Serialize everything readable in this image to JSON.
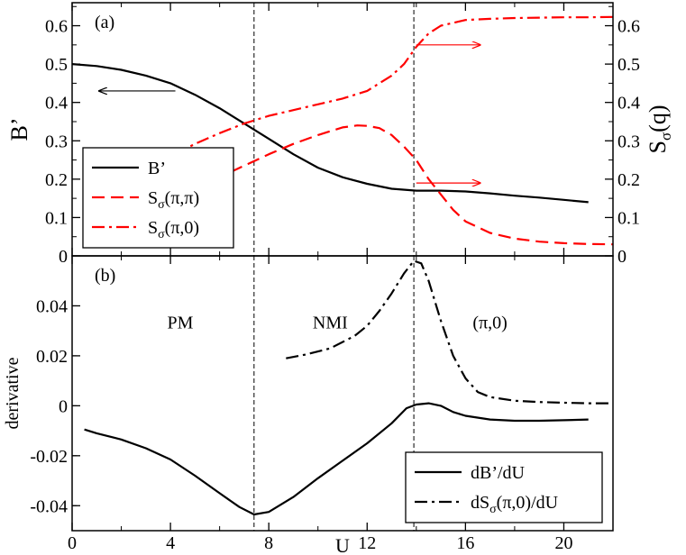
{
  "chart_data": [
    {
      "panel": "(a)",
      "type": "line",
      "xlabel": "",
      "ylabel": "B’",
      "y2label": "S",
      "y2label_sub": "σ",
      "y2label_rest": "(q)",
      "xlim": [
        0,
        22
      ],
      "ylim": [
        0,
        0.66
      ],
      "y2lim": [
        0,
        0.66
      ],
      "yticks": [
        0,
        0.1,
        0.2,
        0.3,
        0.4,
        0.5,
        0.6
      ],
      "ytick_labels": [
        "0",
        "0.1",
        "0.2",
        "0.3",
        "0.4",
        "0.5",
        "0.6"
      ],
      "y2tick_labels": [
        "0",
        "0.1",
        "0.2",
        "0.3",
        "0.4",
        "0.5",
        "0.6"
      ],
      "legend_position": "bottom-left",
      "vlines": [
        7.4,
        13.9
      ],
      "series": [
        {
          "name": "B’",
          "name_main": "B’",
          "name_sub": "",
          "name_rest": "",
          "axis": "left",
          "color": "#000000",
          "dash": "solid",
          "points": [
            [
              0,
              0.5
            ],
            [
              1,
              0.495
            ],
            [
              2,
              0.485
            ],
            [
              3,
              0.47
            ],
            [
              4,
              0.45
            ],
            [
              5,
              0.42
            ],
            [
              6,
              0.385
            ],
            [
              7,
              0.345
            ],
            [
              8,
              0.305
            ],
            [
              9,
              0.265
            ],
            [
              10,
              0.23
            ],
            [
              11,
              0.205
            ],
            [
              12,
              0.188
            ],
            [
              13,
              0.175
            ],
            [
              14,
              0.17
            ],
            [
              15,
              0.17
            ],
            [
              16,
              0.168
            ],
            [
              17,
              0.163
            ],
            [
              18,
              0.157
            ],
            [
              19,
              0.152
            ],
            [
              20,
              0.146
            ],
            [
              21,
              0.14
            ]
          ]
        },
        {
          "name": "Sσ(π,π)",
          "name_main": "S",
          "name_sub": "σ",
          "name_rest": "(π,π)",
          "axis": "right",
          "color": "#ff0000",
          "dash": "dash",
          "points": [
            [
              0.5,
              0.12
            ],
            [
              2,
              0.135
            ],
            [
              4,
              0.165
            ],
            [
              6,
              0.205
            ],
            [
              7,
              0.235
            ],
            [
              8,
              0.265
            ],
            [
              9,
              0.292
            ],
            [
              10,
              0.315
            ],
            [
              11,
              0.335
            ],
            [
              11.6,
              0.34
            ],
            [
              12,
              0.339
            ],
            [
              12.5,
              0.333
            ],
            [
              13,
              0.315
            ],
            [
              13.5,
              0.285
            ],
            [
              14,
              0.25
            ],
            [
              14.5,
              0.2
            ],
            [
              15,
              0.16
            ],
            [
              15.5,
              0.12
            ],
            [
              16,
              0.09
            ],
            [
              17,
              0.06
            ],
            [
              18,
              0.045
            ],
            [
              19,
              0.037
            ],
            [
              20,
              0.033
            ],
            [
              21,
              0.031
            ],
            [
              22,
              0.03
            ]
          ]
        },
        {
          "name": "Sσ(π,0)",
          "name_main": "S",
          "name_sub": "σ",
          "name_rest": "(π,0)",
          "axis": "right",
          "color": "#ff0000",
          "dash": "dashdot",
          "points": [
            [
              0.5,
              0.18
            ],
            [
              2,
              0.2
            ],
            [
              3,
              0.225
            ],
            [
              4,
              0.26
            ],
            [
              5,
              0.292
            ],
            [
              6,
              0.32
            ],
            [
              7,
              0.345
            ],
            [
              8,
              0.365
            ],
            [
              9,
              0.38
            ],
            [
              10,
              0.395
            ],
            [
              11,
              0.41
            ],
            [
              12,
              0.43
            ],
            [
              13,
              0.47
            ],
            [
              13.5,
              0.5
            ],
            [
              14,
              0.545
            ],
            [
              14.5,
              0.58
            ],
            [
              15,
              0.6
            ],
            [
              16,
              0.615
            ],
            [
              17,
              0.618
            ],
            [
              18,
              0.62
            ],
            [
              19,
              0.621
            ],
            [
              20,
              0.622
            ],
            [
              21,
              0.622
            ],
            [
              22,
              0.623
            ]
          ]
        }
      ],
      "annotations": [
        {
          "type": "arrow",
          "from": [
            4.2,
            0.43
          ],
          "to": [
            1.1,
            0.43
          ],
          "color": "#000000"
        },
        {
          "type": "arrow",
          "from": [
            14.0,
            0.55
          ],
          "to": [
            16.6,
            0.55
          ],
          "color": "#ff0000"
        },
        {
          "type": "arrow",
          "from": [
            14.0,
            0.19
          ],
          "to": [
            16.6,
            0.19
          ],
          "color": "#ff0000"
        }
      ]
    },
    {
      "panel": "(b)",
      "type": "line",
      "xlabel": "U",
      "ylabel": "derivative",
      "xlim": [
        0,
        22
      ],
      "ylim": [
        -0.05,
        0.06
      ],
      "xticks": [
        0,
        4,
        8,
        12,
        16,
        20
      ],
      "xtick_labels": [
        "0",
        "4",
        "8",
        "12",
        "16",
        "20"
      ],
      "yticks": [
        -0.04,
        -0.02,
        0,
        0.02,
        0.04
      ],
      "ytick_labels": [
        "-0.04",
        "-0.02",
        "0",
        "0.02",
        "0.04"
      ],
      "legend_position": "bottom-right",
      "vlines": [
        7.4,
        13.9
      ],
      "phase_labels": [
        {
          "text": "PM",
          "x": 4.4,
          "y": 0.031
        },
        {
          "text": "NMI",
          "x": 10.5,
          "y": 0.031
        },
        {
          "text": "(π,0)",
          "x": 17.0,
          "y": 0.031
        }
      ],
      "series": [
        {
          "name": "dB’/dU",
          "name_main": "dB’/dU",
          "name_sub": "",
          "name_rest": "",
          "color": "#000000",
          "dash": "solid",
          "points": [
            [
              0.5,
              -0.0095
            ],
            [
              1,
              -0.011
            ],
            [
              2,
              -0.0135
            ],
            [
              3,
              -0.017
            ],
            [
              4,
              -0.0215
            ],
            [
              5,
              -0.028
            ],
            [
              6,
              -0.035
            ],
            [
              6.8,
              -0.0405
            ],
            [
              7.4,
              -0.0435
            ],
            [
              8,
              -0.0425
            ],
            [
              9,
              -0.0365
            ],
            [
              10,
              -0.029
            ],
            [
              11,
              -0.022
            ],
            [
              12,
              -0.015
            ],
            [
              13,
              -0.007
            ],
            [
              13.6,
              -0.001
            ],
            [
              14,
              0.0005
            ],
            [
              14.5,
              0.001
            ],
            [
              15,
              0.0
            ],
            [
              15.5,
              -0.0025
            ],
            [
              16,
              -0.004
            ],
            [
              17,
              -0.0055
            ],
            [
              18,
              -0.006
            ],
            [
              19,
              -0.006
            ],
            [
              20,
              -0.0058
            ],
            [
              21,
              -0.0055
            ]
          ]
        },
        {
          "name": "dSσ(π,0)/dU",
          "name_main": "dS",
          "name_sub": "σ",
          "name_rest": "(π,0)/dU",
          "color": "#000000",
          "dash": "dashdot",
          "points": [
            [
              8.7,
              0.019
            ],
            [
              9.5,
              0.0205
            ],
            [
              10.5,
              0.023
            ],
            [
              11.5,
              0.028
            ],
            [
              12,
              0.032
            ],
            [
              12.5,
              0.038
            ],
            [
              13,
              0.045
            ],
            [
              13.5,
              0.053
            ],
            [
              13.9,
              0.058
            ],
            [
              14.2,
              0.057
            ],
            [
              14.5,
              0.05
            ],
            [
              15,
              0.034
            ],
            [
              15.5,
              0.02
            ],
            [
              16,
              0.011
            ],
            [
              16.5,
              0.0055
            ],
            [
              17,
              0.0035
            ],
            [
              18,
              0.002
            ],
            [
              19,
              0.0015
            ],
            [
              20,
              0.0012
            ],
            [
              21,
              0.001
            ],
            [
              22,
              0.001
            ]
          ]
        }
      ]
    }
  ]
}
